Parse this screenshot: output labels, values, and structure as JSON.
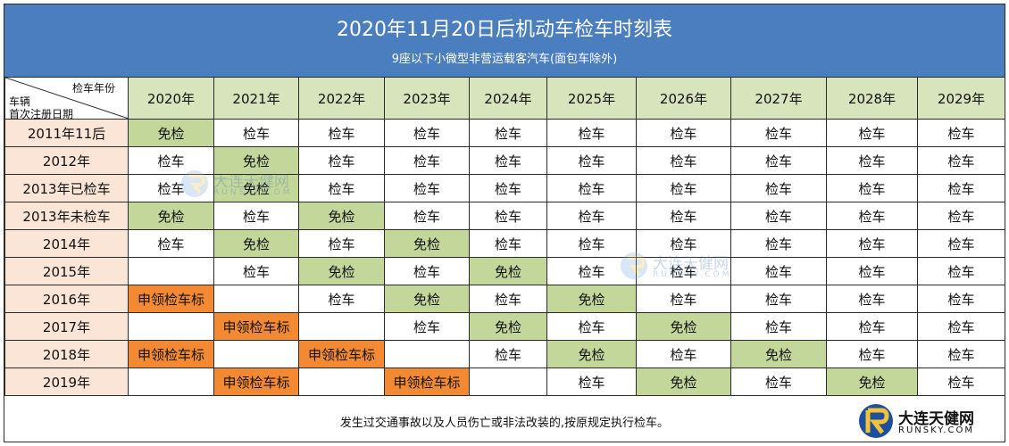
{
  "header": {
    "title": "2020年11月20日后机动车检车时刻表",
    "subtitle": "9座以下小微型非营运载客汽车(面包车除外)"
  },
  "corner": {
    "year_label": "检车年份",
    "vehicle_label": "车辆",
    "date_label": "首次注册日期"
  },
  "years": [
    "2020年",
    "2021年",
    "2022年",
    "2023年",
    "2024年",
    "2025年",
    "2026年",
    "2027年",
    "2028年",
    "2029年"
  ],
  "rows": [
    {
      "label": "2011年11后",
      "cells": [
        "免检",
        "检车",
        "检车",
        "检车",
        "检车",
        "检车",
        "检车",
        "检车",
        "检车",
        "检车"
      ]
    },
    {
      "label": "2012年",
      "cells": [
        "检车",
        "免检",
        "检车",
        "检车",
        "检车",
        "检车",
        "检车",
        "检车",
        "检车",
        "检车"
      ]
    },
    {
      "label": "2013年已检车",
      "cells": [
        "检车",
        "免检",
        "检车",
        "检车",
        "检车",
        "检车",
        "检车",
        "检车",
        "检车",
        "检车"
      ]
    },
    {
      "label": "2013年未检车",
      "cells": [
        "免检",
        "检车",
        "免检",
        "检车",
        "检车",
        "检车",
        "检车",
        "检车",
        "检车",
        "检车"
      ]
    },
    {
      "label": "2014年",
      "cells": [
        "检车",
        "免检",
        "检车",
        "免检",
        "检车",
        "检车",
        "检车",
        "检车",
        "检车",
        "检车"
      ]
    },
    {
      "label": "2015年",
      "cells": [
        "",
        "检车",
        "免检",
        "检车",
        "免检",
        "检车",
        "检车",
        "检车",
        "检车",
        "检车"
      ]
    },
    {
      "label": "2016年",
      "cells": [
        "申领检车标",
        "",
        "检车",
        "免检",
        "检车",
        "免检",
        "检车",
        "检车",
        "检车",
        "检车"
      ]
    },
    {
      "label": "2017年",
      "cells": [
        "",
        "申领检车标",
        "",
        "检车",
        "免检",
        "检车",
        "免检",
        "检车",
        "检车",
        "检车"
      ]
    },
    {
      "label": "2018年",
      "cells": [
        "申领检车标",
        "",
        "申领检车标",
        "",
        "检车",
        "免检",
        "检车",
        "免检",
        "检车",
        "检车"
      ]
    },
    {
      "label": "2019年",
      "cells": [
        "",
        "申领检车标",
        "",
        "申领检车标",
        "",
        "检车",
        "免检",
        "检车",
        "免检",
        "检车"
      ]
    }
  ],
  "footer": {
    "note": "发生过交通事故以及人员伤亡或非法改装的,按原规定执行检车。"
  },
  "logo": {
    "name": "大连天健网",
    "url": "RUNSKY.COM"
  },
  "colors": {
    "header_bg": "#4a7ebf",
    "year_header_bg": "#d8e4bc",
    "row_label_bg": "#fbe5d6",
    "exempt_bg": "#c4d79b",
    "apply_bg": "#f38a33"
  }
}
